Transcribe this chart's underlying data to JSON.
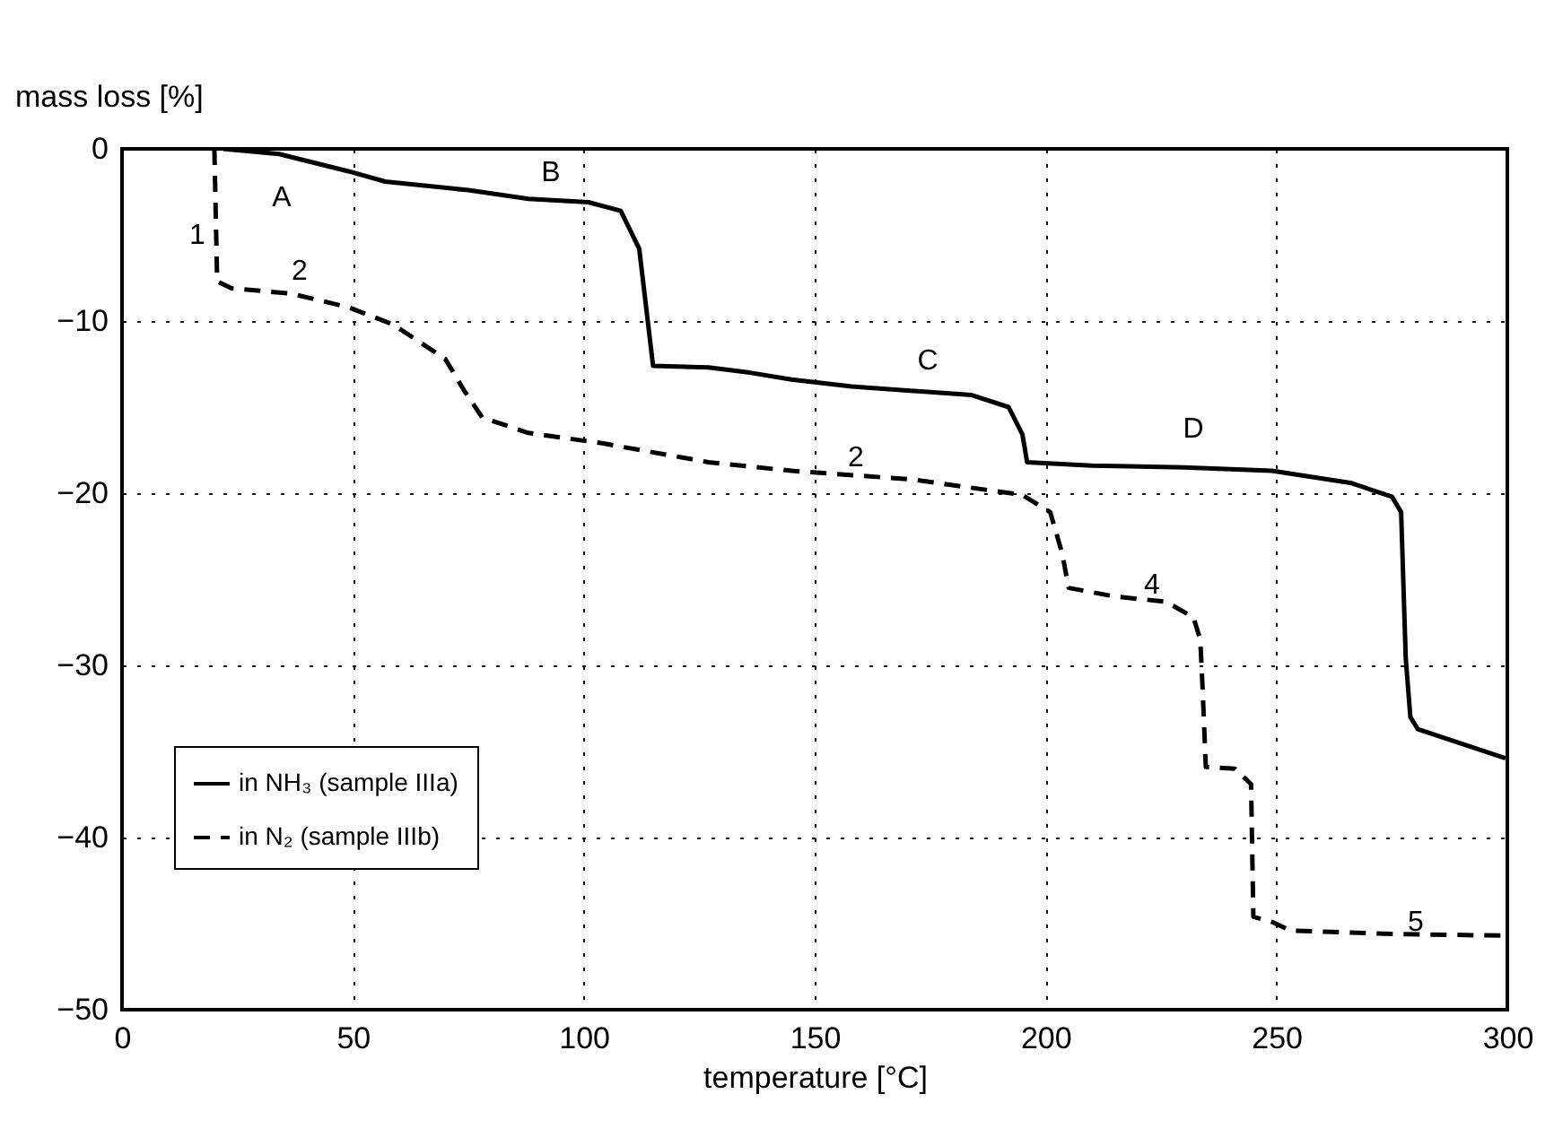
{
  "chart_data": {
    "type": "line",
    "xlabel": "temperature [°C]",
    "ylabel": "mass loss [%]",
    "xlim": [
      0,
      300
    ],
    "xticks": [
      0,
      50,
      100,
      150,
      200,
      250,
      300
    ],
    "ylim": [
      -50,
      0
    ],
    "yticks": [
      -50,
      -40,
      -30,
      -20,
      -10,
      0
    ],
    "grid": true,
    "legend": "bottom left",
    "marker": "none",
    "series": [
      {
        "name": "in NH₃ (sample IIIa)",
        "color": "#000000",
        "line_style": "solid",
        "x": [
          22,
          34,
          49,
          57,
          75,
          88,
          101,
          108,
          112,
          113.5,
          115,
          127,
          136,
          145,
          158,
          184,
          192,
          195,
          196,
          210,
          230,
          249,
          266,
          275,
          277,
          278,
          279,
          280.6,
          299.6
        ],
        "values": [
          0,
          -0.3,
          -1.3,
          -1.9,
          -2.4,
          -2.9,
          -3.1,
          -3.6,
          -5.8,
          -9.2,
          -12.6,
          -12.7,
          -13,
          -13.4,
          -13.8,
          -14.3,
          -15,
          -16.6,
          -18.2,
          -18.4,
          -18.5,
          -18.7,
          -19.4,
          -20.2,
          -21.1,
          -29.6,
          -33,
          -33.7,
          -35.4
        ]
      },
      {
        "name": "in N₂  (sample IIIb)",
        "color": "#000000",
        "line_style": "dashed",
        "x": [
          20,
          20.6,
          23.7,
          36.5,
          49,
          58.7,
          70,
          74,
          78,
          88,
          104,
          127,
          145,
          171,
          195,
          201,
          203.6,
          205,
          215,
          226,
          232,
          233.5,
          234,
          234.7,
          241,
          244.5,
          245,
          249,
          253,
          275,
          300
        ],
        "values": [
          0,
          -7.7,
          -8.1,
          -8.4,
          -9.2,
          -10.2,
          -12.2,
          -14,
          -15.6,
          -16.5,
          -17.1,
          -18.2,
          -18.7,
          -19.2,
          -20.1,
          -21.1,
          -23.5,
          -25.5,
          -26,
          -26.3,
          -27.2,
          -28.5,
          -31.3,
          -35.9,
          -36,
          -36.9,
          -44.6,
          -44.9,
          -45.4,
          -45.6,
          -45.7
        ]
      }
    ],
    "annotations": [
      "A",
      "B",
      "C",
      "D",
      "1",
      "2",
      "2",
      "4",
      "5"
    ]
  }
}
